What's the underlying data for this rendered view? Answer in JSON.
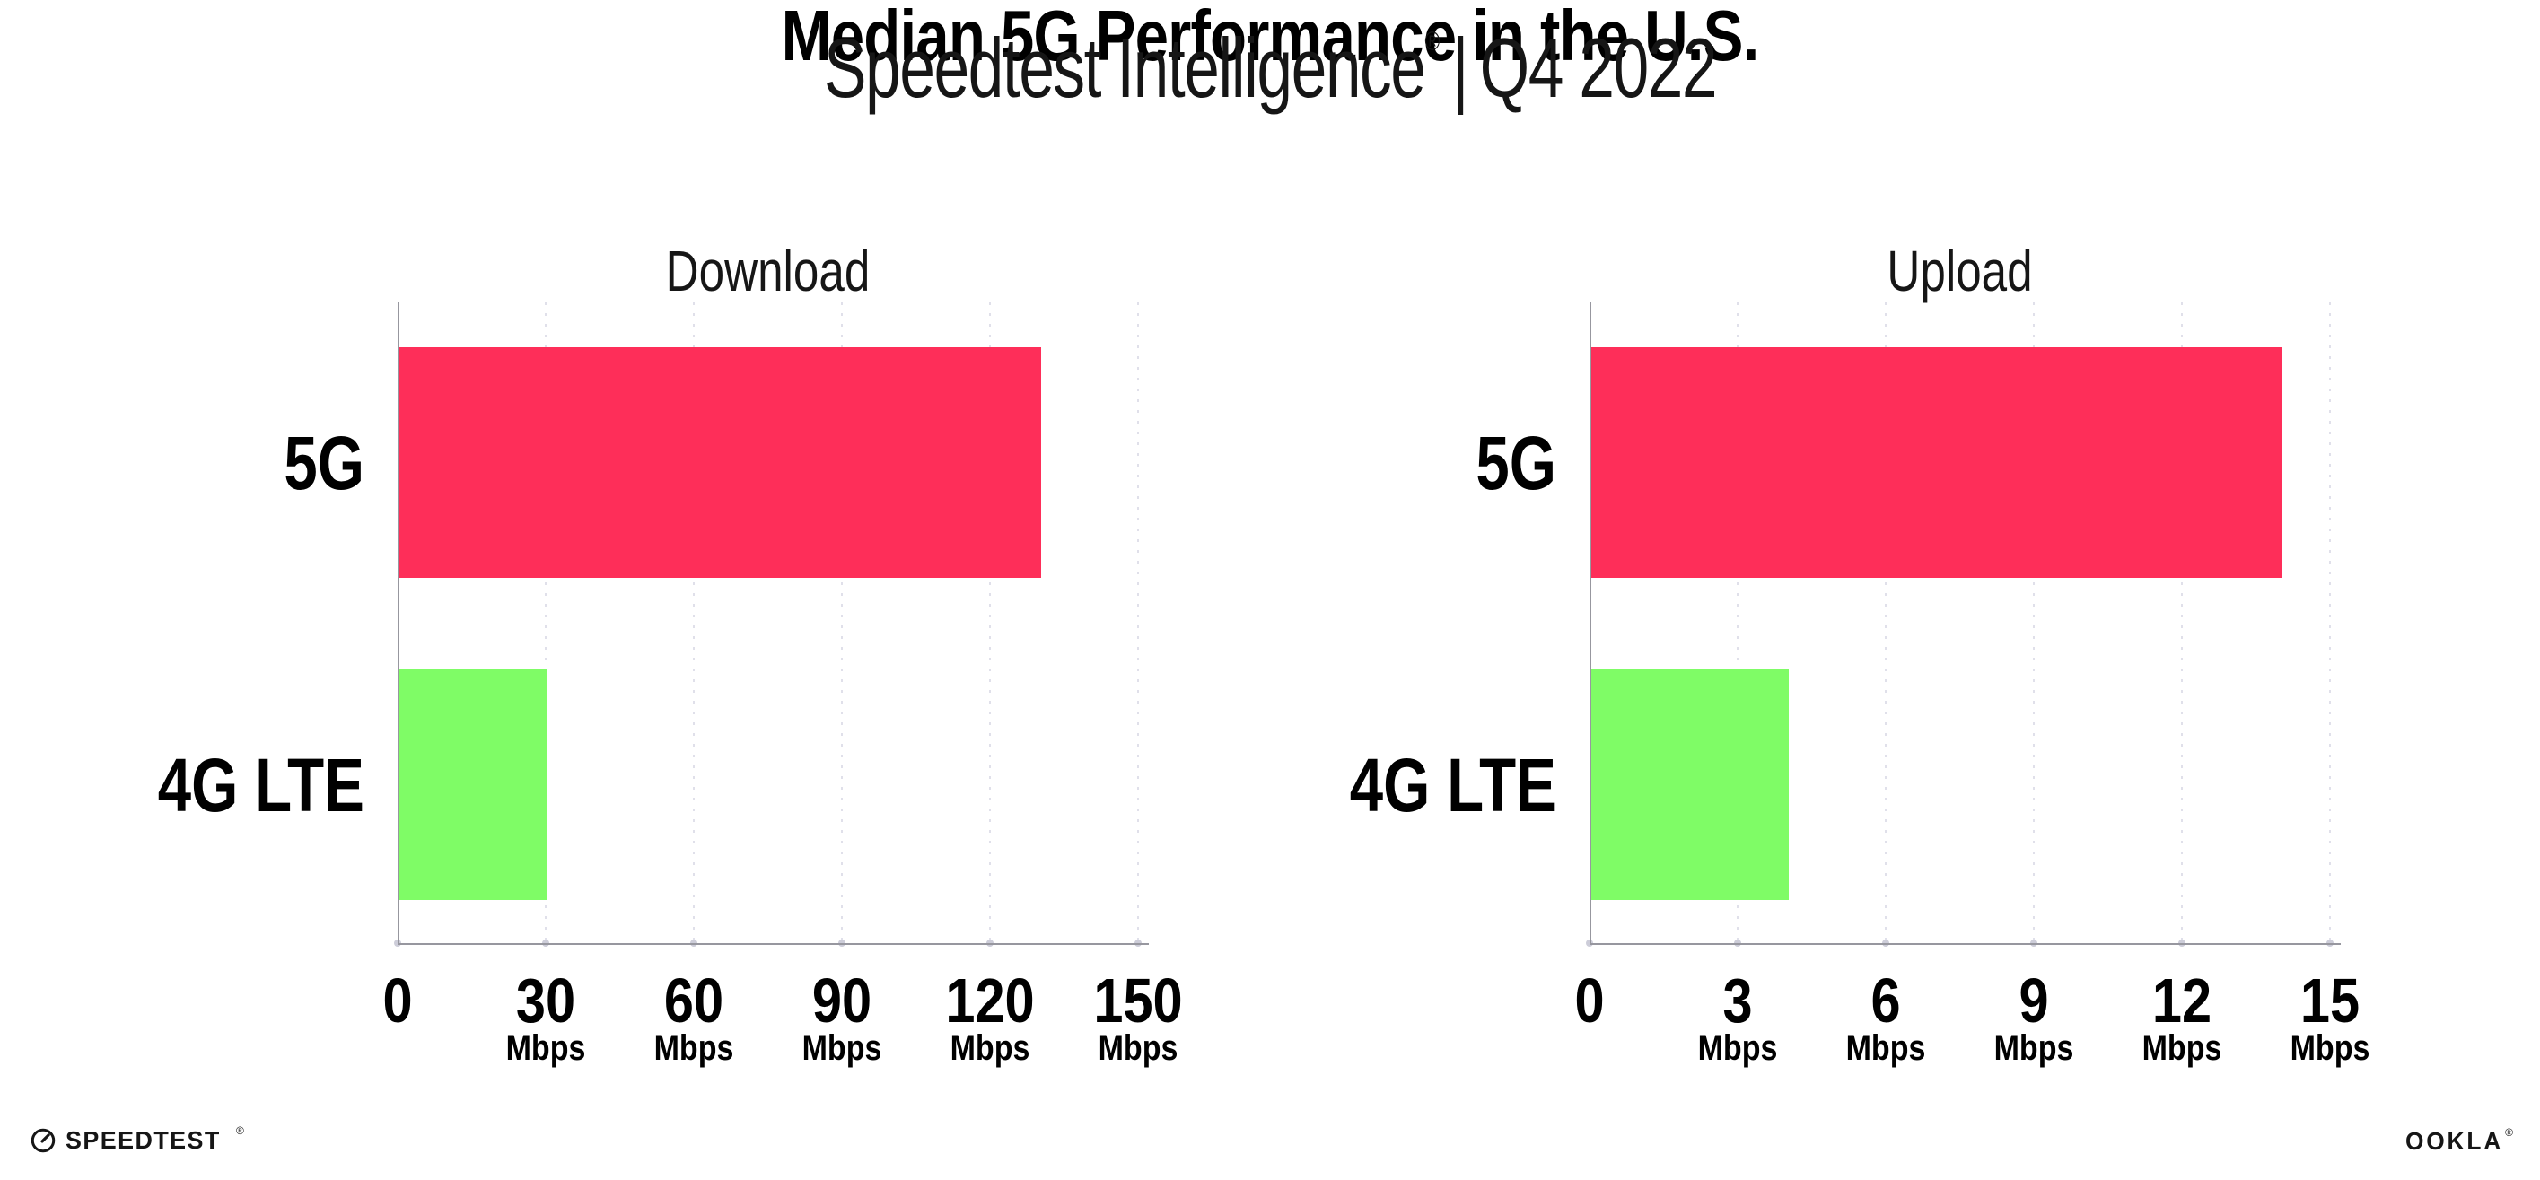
{
  "header": {
    "title": "Median 5G Performance in the U.S.",
    "subtitle_product": "Speedtest Intelligence",
    "subtitle_trademark": "®",
    "subtitle_divider": "|",
    "subtitle_period": "Q4 2022"
  },
  "chart_data": [
    {
      "type": "bar",
      "orientation": "horizontal",
      "title": "Download",
      "categories": [
        "5G",
        "4G LTE"
      ],
      "values": [
        130,
        30
      ],
      "xlabel_unit": "Mbps",
      "xlim": [
        0,
        150
      ],
      "xticks": [
        0,
        30,
        60,
        90,
        120,
        150
      ],
      "xtick_unit_label": "Mbps",
      "bar_colors": [
        "#fe2e59",
        "#7ffc66"
      ],
      "grid": "vertical-dotted",
      "legend": "none"
    },
    {
      "type": "bar",
      "orientation": "horizontal",
      "title": "Upload",
      "categories": [
        "5G",
        "4G LTE"
      ],
      "values": [
        14,
        4
      ],
      "xlabel_unit": "Mbps",
      "xlim": [
        0,
        15
      ],
      "xticks": [
        0,
        3,
        6,
        9,
        12,
        15
      ],
      "xtick_unit_label": "Mbps",
      "bar_colors": [
        "#fe2e59",
        "#7ffc66"
      ],
      "grid": "vertical-dotted",
      "legend": "none"
    }
  ],
  "footer": {
    "speedtest_logo_text": "SPEEDTEST",
    "speedtest_trademark": "®",
    "ookla_logo_text": "OOKLA",
    "ookla_trademark": "®"
  },
  "colors": {
    "bar_5g": "#fe2e59",
    "bar_4g_lte": "#7ffc66",
    "axis_line": "#97979f",
    "gridline": "#e0e0ea",
    "axis_tick_dot": "#cdcdd9",
    "text": "#000000",
    "background": "#ffffff"
  }
}
